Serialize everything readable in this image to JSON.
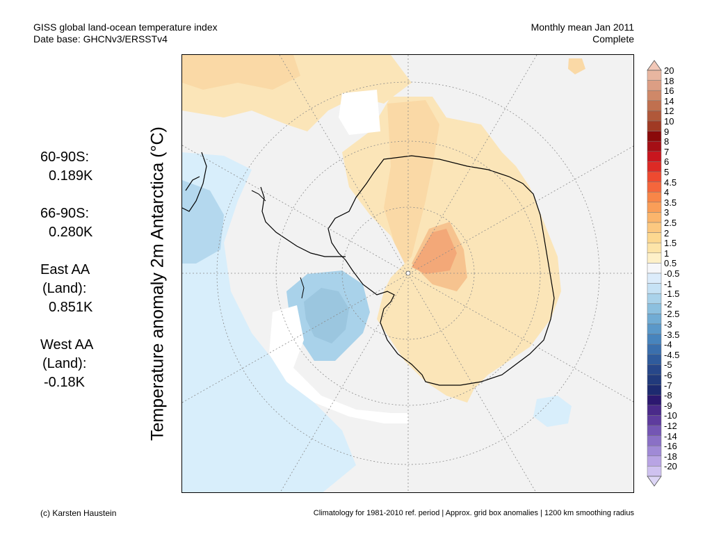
{
  "header": {
    "title": "GISS global land-ocean temperature index",
    "database": "Date base: GHCNv3/ERSSTv4",
    "period": "Monthly mean Jan 2011",
    "status": "Complete"
  },
  "vertical_label": "Temperature anomaly 2m Antarctica (°C)",
  "stats": [
    {
      "region": "60-90S:",
      "value": "0.189K"
    },
    {
      "region": "66-90S:",
      "value": "0.280K"
    },
    {
      "region": "East AA",
      "region2": "(Land):",
      "value": "0.851K"
    },
    {
      "region": "West AA",
      "region2": "(Land):",
      "value": "-0.18K"
    }
  ],
  "colorbar": {
    "labels": [
      "20",
      "18",
      "16",
      "14",
      "12",
      "10",
      "9",
      "8",
      "7",
      "6",
      "5",
      "4.5",
      "4",
      "3.5",
      "3",
      "2.5",
      "2",
      "1.5",
      "1",
      "0.5",
      "-0.5",
      "-1",
      "-1.5",
      "-2",
      "-2.5",
      "-3",
      "-3.5",
      "-4",
      "-4.5",
      "-5",
      "-6",
      "-7",
      "-8",
      "-9",
      "-10",
      "-12",
      "-14",
      "-16",
      "-18",
      "-20"
    ],
    "colors": [
      "#e8b6a0",
      "#dc9e84",
      "#cf8868",
      "#c0704f",
      "#b0583a",
      "#a03a24",
      "#8a0a0a",
      "#a50f15",
      "#c8161e",
      "#dd2a25",
      "#ee4a30",
      "#f5663c",
      "#f88648",
      "#fa9e58",
      "#fbb56c",
      "#fcc880",
      "#fdd890",
      "#fde4a8",
      "#fef0c8",
      "#f6f7fa",
      "#dcecfb",
      "#c6e2f5",
      "#a9d2ea",
      "#8cc0df",
      "#71acd4",
      "#5a98c9",
      "#4784bd",
      "#3a6fad",
      "#2f5b9c",
      "#27478a",
      "#213a7c",
      "#1d2a70",
      "#2c1870",
      "#4a2a8a",
      "#5e3c9e",
      "#7456b4",
      "#8a70c6",
      "#a08ad6",
      "#b8a4e4",
      "#cfc2f0"
    ]
  },
  "map": {
    "land_colors": {
      "neutral": "#f2f2f2",
      "warm_light": "#fbe5b8",
      "warm_med": "#fad9a6",
      "warm_strong": "#f6c38f",
      "hot": "#f3a878",
      "cool_light": "#d8eefb",
      "cool_med": "#a9d2ea",
      "cool_strong": "#9bc6df",
      "missing": "#ffffff"
    }
  },
  "footer": {
    "credit": "(c) Karsten Haustein",
    "note": "Climatology for 1981-2010 ref. period | Approx. grid box anomalies | 1200 km smoothing radius"
  }
}
